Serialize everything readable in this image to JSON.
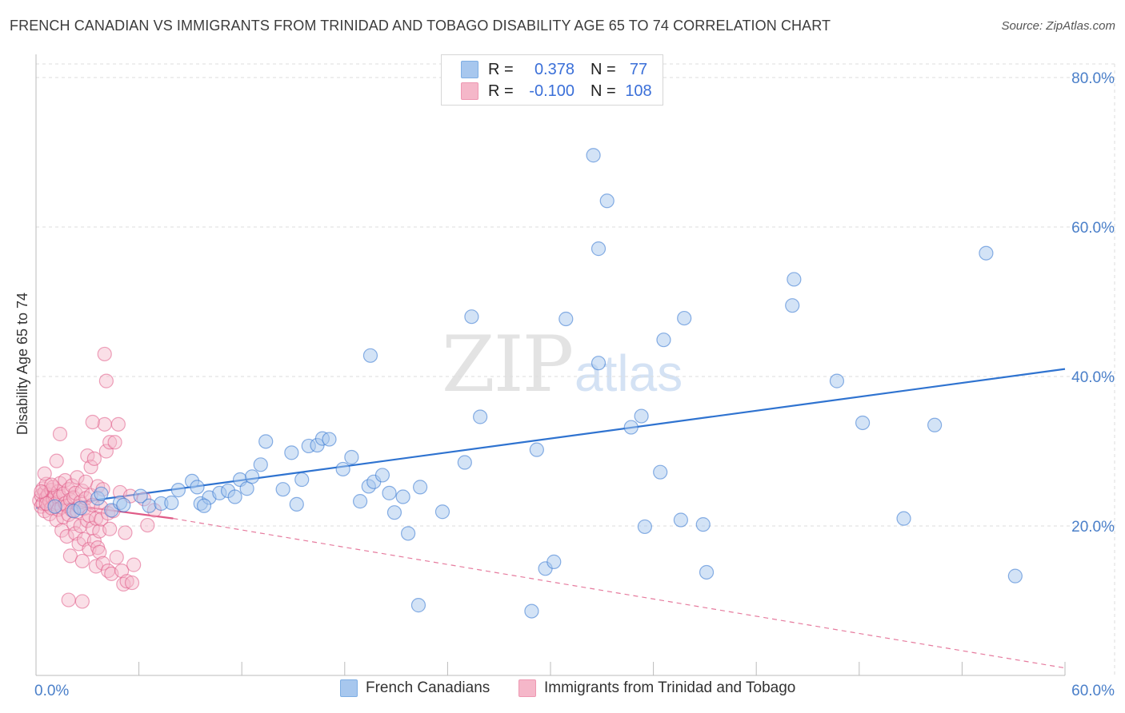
{
  "header": {
    "title": "FRENCH CANADIAN VS IMMIGRANTS FROM TRINIDAD AND TOBAGO DISABILITY AGE 65 TO 74 CORRELATION CHART",
    "source": "Source: ZipAtlas.com"
  },
  "watermark": {
    "zip": "ZIP",
    "atlas": "atlas"
  },
  "legend": {
    "rows": [
      {
        "r_key": "R =",
        "r_value": "0.378",
        "n_key": "N =",
        "n_value": "77",
        "color": "#a7c7ee"
      },
      {
        "r_key": "R =",
        "r_value": "-0.100",
        "n_key": "N =",
        "n_value": "108",
        "color": "#f5b7c9"
      }
    ]
  },
  "bottom_legend": {
    "series1": "French Canadians",
    "series2": "Immigrants from Trinidad and Tobago"
  },
  "colors": {
    "blue": "#2f73d0",
    "blue_fill": "#a7c7ee",
    "pink": "#e05a86",
    "pink_fill": "#f5b7c9",
    "axis_label": "#4a7fc9",
    "grid": "#dddddd"
  },
  "chart_data": {
    "type": "scatter",
    "title": "FRENCH CANADIAN VS IMMIGRANTS FROM TRINIDAD AND TOBAGO DISABILITY AGE 65 TO 74 CORRELATION CHART",
    "xlabel": "",
    "ylabel": "Disability Age 65 to 74",
    "xlim": [
      0,
      60
    ],
    "ylim": [
      0,
      80
    ],
    "x_tick_labels": [
      "0.0%",
      "60.0%"
    ],
    "y_tick_labels": [
      "20.0%",
      "40.0%",
      "60.0%",
      "80.0%"
    ],
    "y_ticks": [
      20,
      40,
      60,
      80
    ],
    "grid": true,
    "legend_position": "top-center",
    "series": [
      {
        "name": "French Canadians",
        "R": 0.378,
        "N": 77,
        "trend": {
          "x": [
            0,
            60
          ],
          "y": [
            22.4,
            41.0
          ],
          "style": "solid"
        },
        "points": [
          [
            1.1,
            22.6
          ],
          [
            2.2,
            22.0
          ],
          [
            2.6,
            22.4
          ],
          [
            3.6,
            23.7
          ],
          [
            3.8,
            24.3
          ],
          [
            4.4,
            22.1
          ],
          [
            4.9,
            23.1
          ],
          [
            5.1,
            22.8
          ],
          [
            6.1,
            24.0
          ],
          [
            6.6,
            22.7
          ],
          [
            7.3,
            23.0
          ],
          [
            7.9,
            23.1
          ],
          [
            8.3,
            24.8
          ],
          [
            9.1,
            26.0
          ],
          [
            9.4,
            25.2
          ],
          [
            9.6,
            23.0
          ],
          [
            10.1,
            23.8
          ],
          [
            10.7,
            24.4
          ],
          [
            11.2,
            24.7
          ],
          [
            11.6,
            23.9
          ],
          [
            11.9,
            26.2
          ],
          [
            12.3,
            25.0
          ],
          [
            13.1,
            28.2
          ],
          [
            13.4,
            31.3
          ],
          [
            14.4,
            24.9
          ],
          [
            14.9,
            29.8
          ],
          [
            15.2,
            22.9
          ],
          [
            15.5,
            26.2
          ],
          [
            15.9,
            30.7
          ],
          [
            16.4,
            30.8
          ],
          [
            16.7,
            31.7
          ],
          [
            17.1,
            31.6
          ],
          [
            17.9,
            27.6
          ],
          [
            18.4,
            29.2
          ],
          [
            18.9,
            23.3
          ],
          [
            19.4,
            25.3
          ],
          [
            19.7,
            25.9
          ],
          [
            19.5,
            42.8
          ],
          [
            20.2,
            26.8
          ],
          [
            20.6,
            24.4
          ],
          [
            20.9,
            21.8
          ],
          [
            21.4,
            23.9
          ],
          [
            21.7,
            19.0
          ],
          [
            22.4,
            25.2
          ],
          [
            22.3,
            9.4
          ],
          [
            23.7,
            21.9
          ],
          [
            25.0,
            28.5
          ],
          [
            25.4,
            48.0
          ],
          [
            25.9,
            34.6
          ],
          [
            28.9,
            8.6
          ],
          [
            29.2,
            30.2
          ],
          [
            29.7,
            14.3
          ],
          [
            30.2,
            15.2
          ],
          [
            30.9,
            47.7
          ],
          [
            32.5,
            69.6
          ],
          [
            32.8,
            57.1
          ],
          [
            33.3,
            63.5
          ],
          [
            32.8,
            41.8
          ],
          [
            34.7,
            33.2
          ],
          [
            35.3,
            34.7
          ],
          [
            35.5,
            19.9
          ],
          [
            36.4,
            27.2
          ],
          [
            36.6,
            44.9
          ],
          [
            37.6,
            20.8
          ],
          [
            37.8,
            47.8
          ],
          [
            38.9,
            20.2
          ],
          [
            39.1,
            13.8
          ],
          [
            44.1,
            49.5
          ],
          [
            44.2,
            53.0
          ],
          [
            46.7,
            39.4
          ],
          [
            48.2,
            33.8
          ],
          [
            50.6,
            21.0
          ],
          [
            52.4,
            33.5
          ],
          [
            55.4,
            56.5
          ],
          [
            57.1,
            13.3
          ],
          [
            9.8,
            22.7
          ],
          [
            12.6,
            26.6
          ]
        ]
      },
      {
        "name": "Immigrants from Trinidad and Tobago",
        "R": -0.1,
        "N": 108,
        "trend_solid": {
          "x": [
            0,
            8
          ],
          "y": [
            23.4,
            21.0
          ]
        },
        "trend_dashed": {
          "x": [
            8,
            60
          ],
          "y": [
            21.0,
            1.0
          ]
        },
        "points": [
          [
            0.2,
            23.4
          ],
          [
            0.3,
            24.1
          ],
          [
            0.3,
            22.6
          ],
          [
            0.4,
            25.0
          ],
          [
            0.4,
            23.0
          ],
          [
            0.5,
            24.5
          ],
          [
            0.5,
            22.0
          ],
          [
            0.6,
            23.8
          ],
          [
            0.6,
            25.6
          ],
          [
            0.7,
            22.8
          ],
          [
            0.7,
            24.2
          ],
          [
            0.8,
            23.3
          ],
          [
            0.8,
            21.6
          ],
          [
            0.9,
            24.8
          ],
          [
            0.9,
            22.4
          ],
          [
            1.0,
            23.6
          ],
          [
            1.0,
            25.2
          ],
          [
            1.1,
            22.9
          ],
          [
            1.1,
            24.0
          ],
          [
            1.2,
            23.1
          ],
          [
            1.2,
            20.8
          ],
          [
            1.3,
            24.6
          ],
          [
            1.3,
            22.2
          ],
          [
            1.4,
            23.9
          ],
          [
            1.4,
            25.7
          ],
          [
            1.5,
            22.5
          ],
          [
            1.5,
            19.4
          ],
          [
            1.6,
            24.3
          ],
          [
            1.6,
            21.2
          ],
          [
            1.7,
            23.0
          ],
          [
            1.7,
            26.1
          ],
          [
            1.8,
            22.7
          ],
          [
            1.8,
            18.6
          ],
          [
            1.9,
            24.9
          ],
          [
            1.9,
            21.5
          ],
          [
            2.0,
            23.5
          ],
          [
            2.0,
            16.0
          ],
          [
            2.1,
            22.1
          ],
          [
            2.1,
            25.4
          ],
          [
            2.2,
            20.3
          ],
          [
            2.2,
            23.8
          ],
          [
            2.3,
            19.0
          ],
          [
            2.3,
            24.4
          ],
          [
            2.4,
            21.9
          ],
          [
            2.4,
            26.5
          ],
          [
            2.5,
            22.6
          ],
          [
            2.5,
            17.6
          ],
          [
            2.6,
            23.2
          ],
          [
            2.6,
            20.0
          ],
          [
            2.7,
            24.7
          ],
          [
            2.7,
            15.3
          ],
          [
            2.8,
            22.3
          ],
          [
            2.8,
            18.2
          ],
          [
            2.9,
            23.7
          ],
          [
            2.9,
            25.9
          ],
          [
            3.0,
            20.7
          ],
          [
            3.0,
            29.4
          ],
          [
            3.1,
            21.4
          ],
          [
            3.1,
            16.9
          ],
          [
            3.2,
            24.1
          ],
          [
            3.2,
            27.9
          ],
          [
            3.3,
            19.7
          ],
          [
            3.3,
            22.8
          ],
          [
            3.4,
            29.0
          ],
          [
            3.4,
            18.0
          ],
          [
            3.5,
            21.0
          ],
          [
            3.5,
            14.6
          ],
          [
            3.6,
            25.3
          ],
          [
            3.6,
            17.1
          ],
          [
            3.7,
            19.3
          ],
          [
            3.7,
            16.5
          ],
          [
            3.8,
            22.5
          ],
          [
            3.8,
            20.9
          ],
          [
            3.9,
            24.9
          ],
          [
            3.9,
            15.0
          ],
          [
            4.0,
            43.0
          ],
          [
            4.0,
            33.6
          ],
          [
            4.1,
            39.4
          ],
          [
            4.1,
            30.0
          ],
          [
            4.2,
            21.7
          ],
          [
            4.2,
            14.0
          ],
          [
            4.3,
            31.2
          ],
          [
            4.3,
            19.6
          ],
          [
            4.4,
            13.6
          ],
          [
            4.5,
            22.0
          ],
          [
            4.6,
            31.2
          ],
          [
            4.7,
            15.8
          ],
          [
            4.8,
            33.6
          ],
          [
            4.9,
            24.5
          ],
          [
            5.0,
            14.0
          ],
          [
            5.1,
            12.2
          ],
          [
            5.2,
            19.1
          ],
          [
            5.3,
            12.6
          ],
          [
            5.5,
            24.0
          ],
          [
            5.6,
            12.4
          ],
          [
            5.7,
            14.8
          ],
          [
            6.5,
            20.1
          ],
          [
            6.9,
            22.1
          ],
          [
            6.3,
            23.6
          ],
          [
            0.5,
            27.0
          ],
          [
            1.4,
            32.3
          ],
          [
            1.9,
            10.1
          ],
          [
            2.7,
            9.9
          ],
          [
            3.3,
            33.9
          ],
          [
            1.2,
            28.7
          ],
          [
            0.9,
            25.5
          ],
          [
            0.6,
            23.0
          ],
          [
            0.3,
            24.6
          ]
        ]
      }
    ]
  }
}
